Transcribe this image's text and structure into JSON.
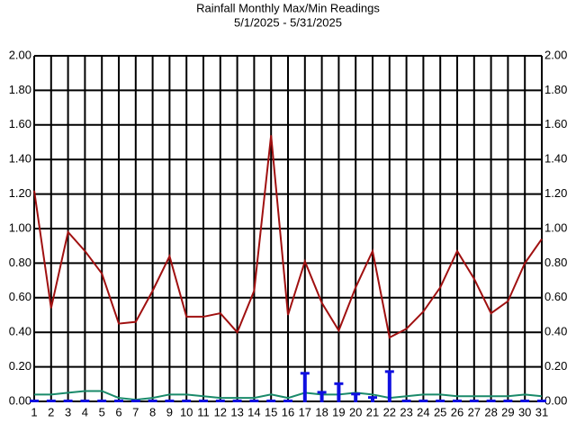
{
  "chart_data": {
    "type": "line",
    "title": "Rainfall Monthly Max/Min Readings",
    "subtitle": "5/1/2025 - 5/31/2025",
    "categories": [
      "1",
      "2",
      "3",
      "4",
      "5",
      "6",
      "7",
      "8",
      "9",
      "10",
      "11",
      "12",
      "13",
      "14",
      "15",
      "16",
      "17",
      "18",
      "19",
      "20",
      "21",
      "22",
      "23",
      "24",
      "25",
      "26",
      "27",
      "28",
      "29",
      "30",
      "31"
    ],
    "series": [
      {
        "type": "line",
        "color": "#a01010",
        "values": [
          1.22,
          0.54,
          0.98,
          0.87,
          0.74,
          0.45,
          0.46,
          0.64,
          0.84,
          0.49,
          0.49,
          0.51,
          0.4,
          0.64,
          1.54,
          0.5,
          0.81,
          0.57,
          0.41,
          0.66,
          0.87,
          0.37,
          0.42,
          0.52,
          0.66,
          0.87,
          0.71,
          0.51,
          0.58,
          0.8,
          0.94
        ]
      },
      {
        "type": "line",
        "color": "#1a8a6a",
        "values": [
          0.04,
          0.04,
          0.05,
          0.06,
          0.06,
          0.02,
          0.01,
          0.02,
          0.04,
          0.04,
          0.03,
          0.02,
          0.02,
          0.02,
          0.04,
          0.02,
          0.05,
          0.04,
          0.04,
          0.05,
          0.04,
          0.02,
          0.03,
          0.04,
          0.04,
          0.03,
          0.03,
          0.03,
          0.03,
          0.04,
          0.03
        ]
      },
      {
        "type": "bar",
        "color": "#1010e0",
        "values": [
          0,
          0,
          0,
          0,
          0,
          0,
          0,
          0,
          0,
          0,
          0,
          0,
          0,
          0,
          0,
          0,
          0.16,
          0.05,
          0.1,
          0.04,
          0.02,
          0.17,
          0,
          0,
          0,
          0,
          0,
          0,
          0,
          0,
          0
        ]
      }
    ],
    "ylim": [
      0,
      2
    ],
    "yticks": [
      {
        "value": 0,
        "label": "0.00"
      },
      {
        "value": 0.2,
        "label": "0.20"
      },
      {
        "value": 0.4,
        "label": "0.40"
      },
      {
        "value": 0.6,
        "label": "0.60"
      },
      {
        "value": 0.8,
        "label": "0.80"
      },
      {
        "value": 1,
        "label": "1.00"
      },
      {
        "value": 1.2,
        "label": "1.20"
      },
      {
        "value": 1.4,
        "label": "1.40"
      },
      {
        "value": 1.6,
        "label": "1.60"
      },
      {
        "value": 1.8,
        "label": "1.80"
      },
      {
        "value": 2,
        "label": "2.00"
      }
    ],
    "grid": true
  }
}
